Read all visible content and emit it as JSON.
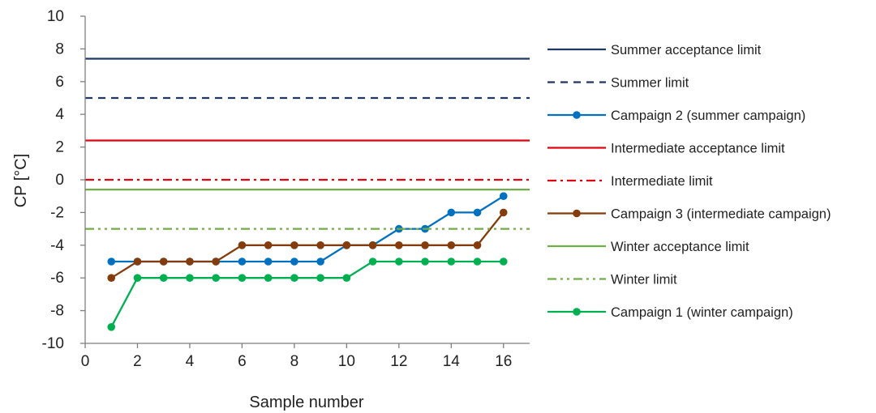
{
  "chart_data": {
    "type": "line",
    "title": "",
    "xlabel": "Sample number",
    "ylabel": "CP [°C]",
    "xlim": [
      0,
      17
    ],
    "ylim": [
      -10,
      10
    ],
    "x_ticks": [
      0,
      2,
      4,
      6,
      8,
      10,
      12,
      14,
      16
    ],
    "y_ticks": [
      -10,
      -8,
      -6,
      -4,
      -2,
      0,
      2,
      4,
      6,
      8,
      10
    ],
    "grid": false,
    "legend_position": "right",
    "series": [
      {
        "name": "Summer acceptance limit",
        "kind": "constant",
        "value": 7.4,
        "color": "#1F3864",
        "dash": "solid",
        "marker": false
      },
      {
        "name": "Summer limit",
        "kind": "constant",
        "value": 5,
        "color": "#1F3864",
        "dash": "dashed",
        "marker": false
      },
      {
        "name": "Campaign 2 (summer campaign)",
        "kind": "data",
        "color": "#0070C0",
        "dash": "solid",
        "marker": true,
        "x": [
          1,
          2,
          3,
          4,
          5,
          6,
          7,
          8,
          9,
          10,
          11,
          12,
          13,
          14,
          15,
          16
        ],
        "y": [
          -5,
          -5,
          -5,
          -5,
          -5,
          -5,
          -5,
          -5,
          -5,
          -4,
          -4,
          -3,
          -3,
          -2,
          -2,
          -1
        ]
      },
      {
        "name": "Intermediate acceptance limit",
        "kind": "constant",
        "value": 2.4,
        "color": "#E3000F",
        "dash": "solid",
        "marker": false
      },
      {
        "name": "Intermediate limit",
        "kind": "constant",
        "value": 0,
        "color": "#E3000F",
        "dash": "dashdot",
        "marker": false
      },
      {
        "name": "Campaign 3 (intermediate campaign)",
        "kind": "data",
        "color": "#843C0C",
        "dash": "solid",
        "marker": true,
        "x": [
          1,
          2,
          3,
          4,
          5,
          6,
          7,
          8,
          9,
          10,
          11,
          12,
          13,
          14,
          15,
          16
        ],
        "y": [
          -6,
          -5,
          -5,
          -5,
          -5,
          -4,
          -4,
          -4,
          -4,
          -4,
          -4,
          -4,
          -4,
          -4,
          -4,
          -2
        ]
      },
      {
        "name": "Winter acceptance limit",
        "kind": "constant",
        "value": -0.6,
        "color": "#70AD47",
        "dash": "solid",
        "marker": false
      },
      {
        "name": "Winter limit",
        "kind": "constant",
        "value": -3,
        "color": "#70AD47",
        "dash": "dashdotdot",
        "marker": false
      },
      {
        "name": "Campaign 1 (winter campaign)",
        "kind": "data",
        "color": "#00B050",
        "dash": "solid",
        "marker": true,
        "x": [
          1,
          2,
          3,
          4,
          5,
          6,
          7,
          8,
          9,
          10,
          11,
          12,
          13,
          14,
          15,
          16
        ],
        "y": [
          -9,
          -6,
          -6,
          -6,
          -6,
          -6,
          -6,
          -6,
          -6,
          -6,
          -5,
          -5,
          -5,
          -5,
          -5,
          -5
        ]
      }
    ]
  }
}
